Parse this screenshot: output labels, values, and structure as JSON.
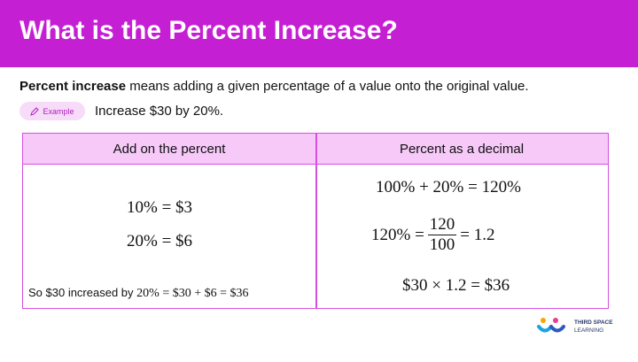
{
  "header": {
    "title": "What is the Percent Increase?"
  },
  "definition": {
    "term": "Percent increase",
    "text": " means adding a given percentage of a value onto the original value."
  },
  "example": {
    "label": "Example",
    "text": "Increase $30 by 20%."
  },
  "table": {
    "headers": [
      "Add on the percent",
      "Percent as a decimal"
    ],
    "left": {
      "lines": [
        "10% = $3",
        "20% = $6"
      ],
      "summary_text": "So $30 increased by",
      "summary_math": "20% = $30 + $6 = $36"
    },
    "right": {
      "line1": "100% + 20% = 120%",
      "line2_left": "120% =",
      "numerator": "120",
      "denominator": "100",
      "line2_right": "= 1.2",
      "line3": "$30 × 1.2 = $36"
    }
  },
  "logo": {
    "line1": "THIRD SPACE",
    "line2": "LEARNING"
  }
}
